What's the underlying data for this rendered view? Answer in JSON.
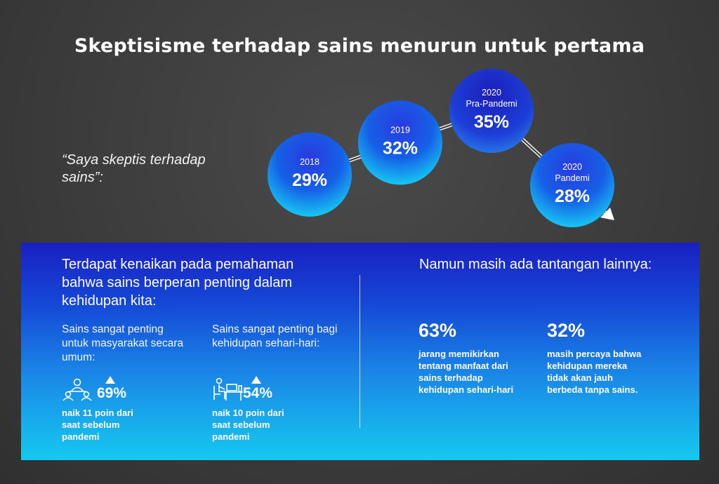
{
  "title": "Skeptisisme terhadap sains menurun untuk pertama",
  "quote": "“Saya skeptis terhadap sains”:",
  "chart_data": {
    "type": "line",
    "title": "Skeptisisme terhadap sains menurun untuk pertama",
    "categories": [
      "2018",
      "2019",
      "2020 Pra-Pandemi",
      "2020 Pandemi"
    ],
    "points": [
      {
        "label_lines": [
          "2018"
        ],
        "value": 29,
        "value_label": "29%"
      },
      {
        "label_lines": [
          "2019"
        ],
        "value": 32,
        "value_label": "32%"
      },
      {
        "label_lines": [
          "2020",
          "Pra-Pandemi"
        ],
        "value": 35,
        "value_label": "35%"
      },
      {
        "label_lines": [
          "2020",
          "Pandemi"
        ],
        "value": 28,
        "value_label": "28%"
      }
    ],
    "unit": "%"
  },
  "panel": {
    "left_heading": "Terdapat kenaikan pada pemahaman bahwa sains berperan penting dalam kehidupan kita:",
    "stat1": {
      "label": "Sains sangat penting untuk masyarakat secara umum:",
      "value": "69%",
      "note": "naik 11 poin dari saat sebelum pandemi",
      "icon": "people-meeting-icon"
    },
    "stat2": {
      "label": "Sains sangat penting bagi kehidupan sehari-hari:",
      "value": "54%",
      "note": "naik 10 poin dari saat sebelum pandemi",
      "icon": "person-at-desk-icon"
    },
    "right_heading": "Namun masih ada tantangan lainnya:",
    "stat3": {
      "value": "63%",
      "note": "jarang memikirkan tentang manfaat dari sains terhadap kehidupan sehari-hari"
    },
    "stat4": {
      "value": "32%",
      "note": "masih percaya bahwa kehidupan mereka tidak akan jauh berbeda tanpa sains."
    }
  }
}
